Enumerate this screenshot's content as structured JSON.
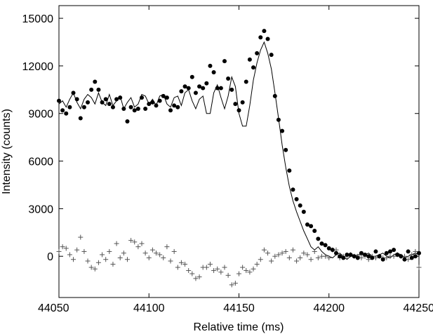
{
  "chart_data": {
    "type": "scatter",
    "xlabel": "Relative time (ms)",
    "ylabel": "Intensity (counts)",
    "xlim": [
      44050,
      44250
    ],
    "ylim": [
      -2600,
      15800
    ],
    "xticks": [
      44050,
      44100,
      44150,
      44200,
      44250
    ],
    "yticks": [
      0,
      3000,
      6000,
      9000,
      12000,
      15000
    ],
    "grid": false,
    "legend": "none",
    "colors": {
      "dots": "#000000",
      "fit": "#000000",
      "residuals": "#555555"
    },
    "series": [
      {
        "marker": "filled-circle",
        "x": [
          44050,
          44052,
          44054,
          44056,
          44058,
          44060,
          44062,
          44064,
          44066,
          44068,
          44070,
          44072,
          44074,
          44076,
          44078,
          44080,
          44082,
          44084,
          44086,
          44088,
          44090,
          44092,
          44094,
          44096,
          44098,
          44100,
          44102,
          44104,
          44106,
          44108,
          44110,
          44112,
          44114,
          44116,
          44118,
          44120,
          44122,
          44124,
          44126,
          44128,
          44130,
          44132,
          44134,
          44136,
          44138,
          44140,
          44142,
          44144,
          44146,
          44148,
          44150,
          44152,
          44154,
          44156,
          44158,
          44160,
          44162,
          44164,
          44166,
          44168,
          44170,
          44172,
          44174,
          44176,
          44178,
          44180,
          44182,
          44184,
          44186,
          44188,
          44190,
          44192,
          44194,
          44196,
          44198,
          44200,
          44202,
          44204,
          44206,
          44208,
          44210,
          44212,
          44214,
          44216,
          44218,
          44220,
          44222,
          44224,
          44226,
          44228,
          44230,
          44232,
          44234,
          44236,
          44238,
          44240,
          44242,
          44244,
          44246,
          44248,
          44250
        ],
        "values": [
          9800,
          9200,
          9000,
          9400,
          10300,
          9900,
          8700,
          9400,
          9700,
          10500,
          11000,
          10500,
          9700,
          9900,
          9600,
          9400,
          9900,
          10000,
          9300,
          8500,
          9400,
          9200,
          9300,
          10000,
          9300,
          9600,
          9700,
          9500,
          9800,
          10100,
          10000,
          9200,
          9500,
          9400,
          10400,
          10700,
          10600,
          11300,
          10300,
          10700,
          10600,
          10900,
          12000,
          11600,
          10600,
          10600,
          12300,
          11200,
          10500,
          9600,
          9200,
          9700,
          11000,
          12400,
          11900,
          12800,
          13800,
          14200,
          13700,
          12700,
          10100,
          8600,
          7900,
          6700,
          5400,
          4200,
          3600,
          3200,
          2800,
          2000,
          1900,
          1600,
          1100,
          800,
          700,
          500,
          400,
          200,
          0,
          -100,
          100,
          100,
          0,
          -100,
          200,
          100,
          0,
          -100,
          300,
          0,
          -200,
          200,
          300,
          400,
          100,
          0,
          -200,
          300,
          -100,
          0,
          200
        ]
      },
      {
        "marker": "plus",
        "x": [
          44050,
          44052,
          44054,
          44056,
          44058,
          44060,
          44062,
          44064,
          44066,
          44068,
          44070,
          44072,
          44074,
          44076,
          44078,
          44080,
          44082,
          44084,
          44086,
          44088,
          44090,
          44092,
          44094,
          44096,
          44098,
          44100,
          44102,
          44104,
          44106,
          44108,
          44110,
          44112,
          44114,
          44116,
          44118,
          44120,
          44122,
          44124,
          44126,
          44128,
          44130,
          44132,
          44134,
          44136,
          44138,
          44140,
          44142,
          44144,
          44146,
          44148,
          44150,
          44152,
          44154,
          44156,
          44158,
          44160,
          44162,
          44164,
          44166,
          44168,
          44170,
          44172,
          44174,
          44176,
          44178,
          44180,
          44182,
          44184,
          44186,
          44188,
          44190,
          44192,
          44194,
          44196,
          44198,
          44200,
          44202,
          44204,
          44206,
          44208,
          44210,
          44212,
          44214,
          44216,
          44218,
          44220,
          44222,
          44224,
          44226,
          44228,
          44230,
          44232,
          44234,
          44236,
          44238,
          44240,
          44242,
          44244,
          44246,
          44248,
          44250
        ],
        "values": [
          300,
          600,
          500,
          100,
          -200,
          400,
          1200,
          300,
          -300,
          -700,
          -800,
          -400,
          100,
          -200,
          300,
          -500,
          800,
          -100,
          200,
          -200,
          1000,
          900,
          600,
          800,
          200,
          -100,
          400,
          200,
          100,
          -100,
          600,
          -300,
          300,
          -700,
          -400,
          -500,
          -900,
          -1100,
          -1400,
          -1300,
          -700,
          -700,
          -500,
          -900,
          -800,
          -1000,
          -700,
          -1200,
          -1800,
          -1700,
          -1100,
          -700,
          -900,
          -1000,
          -800,
          -500,
          -200,
          400,
          200,
          -300,
          0,
          100,
          200,
          300,
          -100,
          400,
          -300,
          -100,
          200,
          100,
          -200,
          300,
          -100,
          0,
          0,
          -100,
          400,
          400,
          -100,
          0,
          0,
          100,
          0,
          0,
          -100,
          0,
          -200,
          0,
          -100,
          0,
          -100,
          -100,
          0,
          0,
          100,
          0,
          0,
          -200,
          100,
          300,
          -700
        ]
      },
      {
        "marker": "line",
        "x": [
          44050,
          44052,
          44054,
          44056,
          44058,
          44060,
          44062,
          44064,
          44066,
          44068,
          44070,
          44072,
          44074,
          44076,
          44078,
          44080,
          44082,
          44084,
          44086,
          44088,
          44090,
          44092,
          44094,
          44096,
          44098,
          44100,
          44102,
          44104,
          44106,
          44108,
          44110,
          44112,
          44114,
          44116,
          44118,
          44120,
          44122,
          44124,
          44126,
          44128,
          44130,
          44132,
          44134,
          44136,
          44138,
          44140,
          44142,
          44144,
          44146,
          44148,
          44150,
          44152,
          44154,
          44156,
          44158,
          44160,
          44162,
          44164,
          44166,
          44168,
          44170,
          44172,
          44174,
          44176,
          44178,
          44180,
          44182,
          44184,
          44186,
          44188,
          44190,
          44192,
          44194,
          44196,
          44198,
          44200,
          44202,
          44204,
          44206,
          44208,
          44210,
          44212,
          44214,
          44216,
          44218,
          44220,
          44222,
          44224,
          44226,
          44228,
          44230,
          44232,
          44234,
          44236,
          44238,
          44240,
          44242,
          44244,
          44246,
          44248,
          44250
        ],
        "values": [
          9600,
          9800,
          9400,
          9900,
          10300,
          9700,
          9300,
          9900,
          10200,
          10000,
          9600,
          10300,
          9700,
          9500,
          10200,
          9500,
          9800,
          10100,
          9300,
          9700,
          10000,
          9400,
          9600,
          10200,
          10100,
          9600,
          9900,
          9500,
          10100,
          10200,
          9600,
          9400,
          10000,
          10100,
          9500,
          10300,
          10500,
          9800,
          9300,
          9900,
          10100,
          9000,
          9000,
          10300,
          10800,
          10000,
          9300,
          10100,
          11300,
          10700,
          9000,
          8200,
          8200,
          9500,
          11100,
          12200,
          13000,
          13500,
          12800,
          11800,
          10300,
          8700,
          7000,
          5600,
          4400,
          3500,
          2800,
          2200,
          1600,
          1100,
          600,
          400,
          600,
          300,
          100,
          0,
          -100,
          100,
          200,
          0,
          -200,
          0,
          0,
          100,
          100,
          100,
          200,
          0,
          0,
          100,
          200,
          0,
          -100,
          100,
          200,
          100,
          -100,
          0,
          100,
          200,
          100
        ]
      }
    ]
  }
}
